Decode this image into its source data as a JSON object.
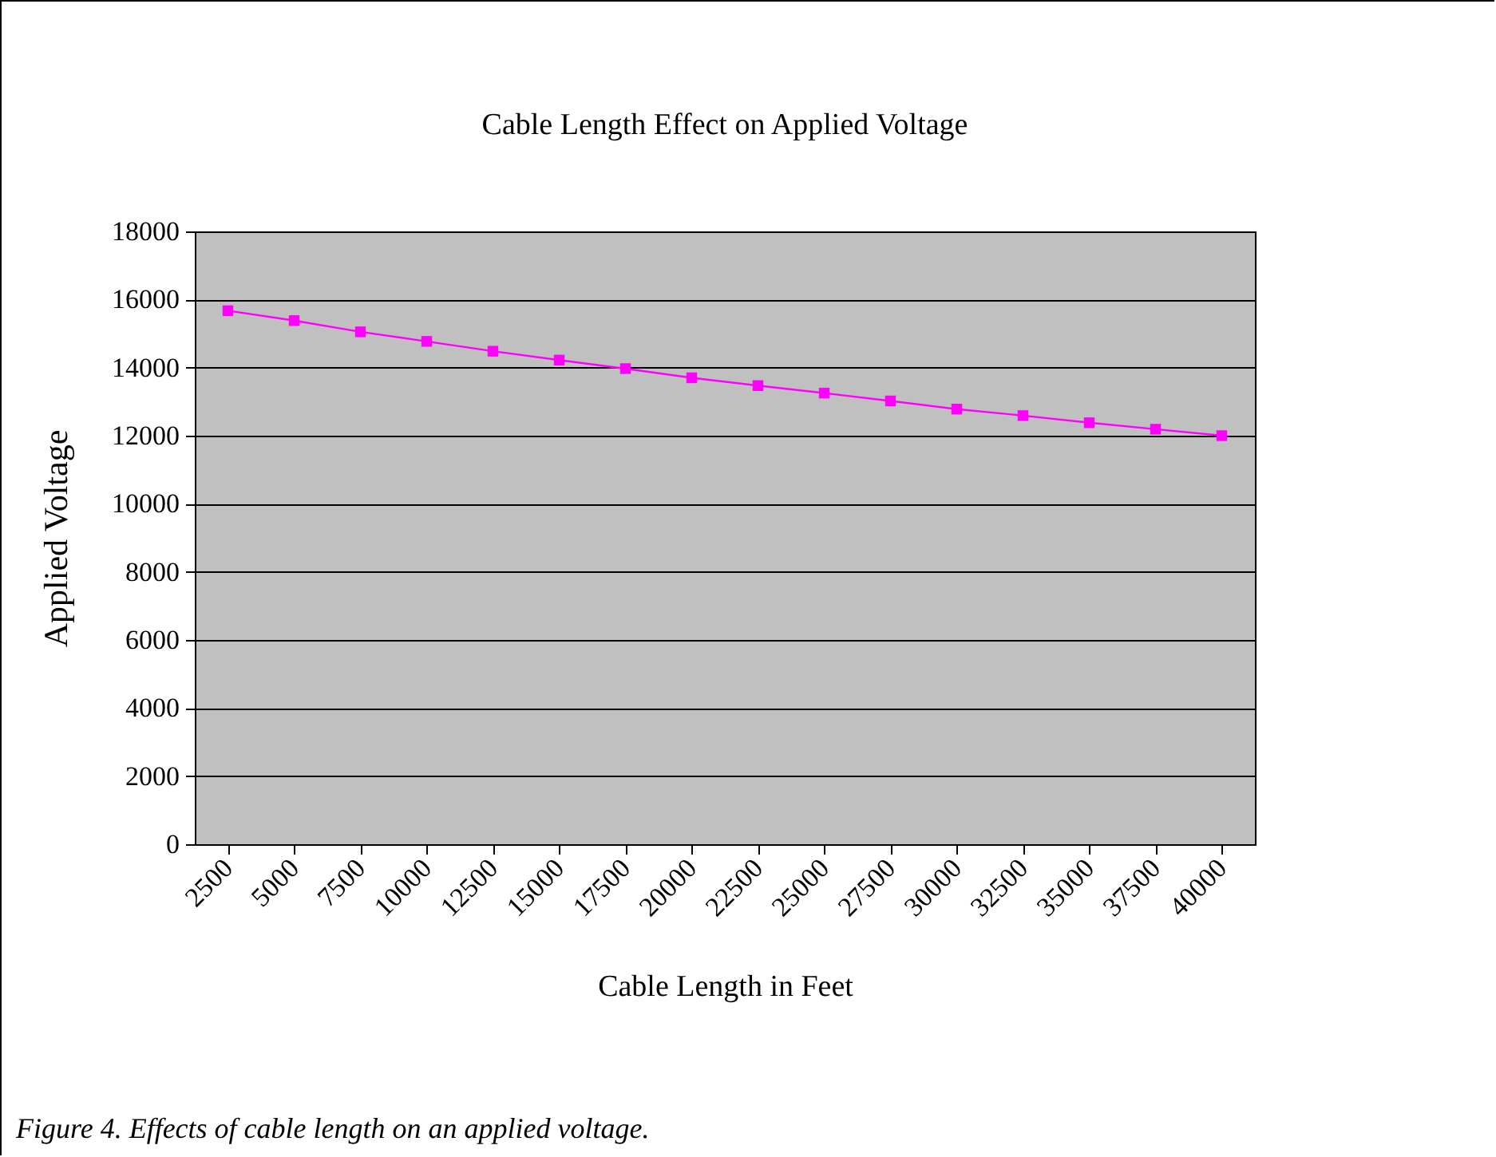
{
  "chart_data": {
    "type": "line",
    "title": "Cable Length Effect on Applied Voltage",
    "xlabel": "Cable Length in Feet",
    "ylabel": "Applied Voltage",
    "annotations": [
      "Figure 4. Effects of cable length on an applied voltage."
    ],
    "categories": [
      "2500",
      "5000",
      "7500",
      "10000",
      "12500",
      "15000",
      "17500",
      "20000",
      "22500",
      "25000",
      "27500",
      "30000",
      "32500",
      "35000",
      "37500",
      "40000"
    ],
    "series": [
      {
        "color": "#ff00ff",
        "values": [
          15670,
          15380,
          15050,
          14770,
          14480,
          14220,
          13970,
          13700,
          13470,
          13250,
          13020,
          12780,
          12590,
          12380,
          12190,
          12000
        ]
      }
    ],
    "ylim": [
      0,
      18000
    ],
    "yticks": [
      0,
      2000,
      4000,
      6000,
      8000,
      10000,
      12000,
      14000,
      16000,
      18000
    ],
    "grid": "y",
    "marker": "square",
    "line_style": "solid",
    "legend": false
  }
}
